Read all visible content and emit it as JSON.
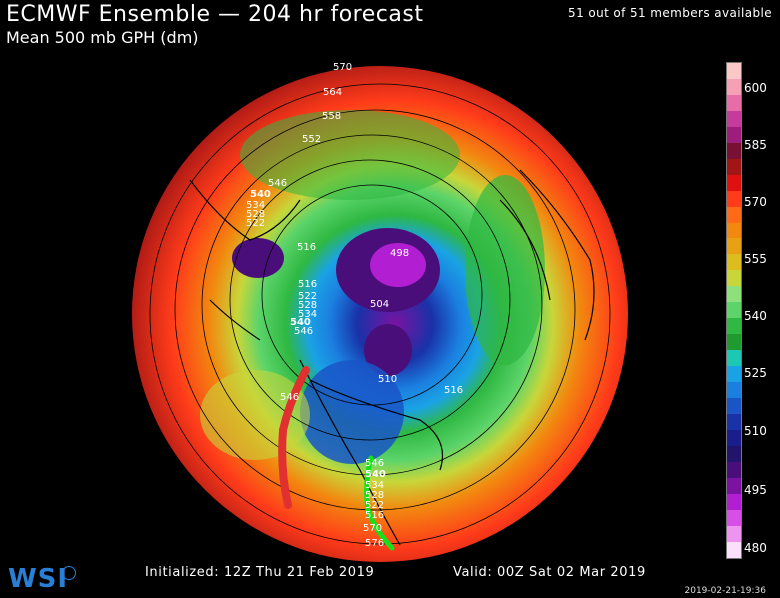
{
  "header": {
    "title": "ECMWF Ensemble — 204 hr forecast",
    "subtitle": "Mean 500 mb GPH (dm)",
    "members": "51 out of 51 members available"
  },
  "footer": {
    "initialized": "Initialized: 12Z Thu 21 Feb 2019",
    "valid": "Valid: 00Z Sat 02 Mar 2019",
    "timestamp": "2019-02-21-19:36",
    "logo": "WSI"
  },
  "colorbar": {
    "labels": [
      "600",
      "585",
      "570",
      "555",
      "540",
      "525",
      "510",
      "495",
      "480"
    ],
    "colors": [
      "#fbc8c8",
      "#f5a0b6",
      "#e86ca8",
      "#c63a9c",
      "#9e1c7c",
      "#7a0f34",
      "#a11515",
      "#e01010",
      "#ff3b1a",
      "#ff6a17",
      "#f2880f",
      "#e8a014",
      "#dcbc1e",
      "#c8d63a",
      "#8ee07a",
      "#5cd46a",
      "#2fb842",
      "#1e9a2f",
      "#1cc8b4",
      "#1aa3e4",
      "#1b7fe0",
      "#1a55c8",
      "#1932a8",
      "#1a1e8c",
      "#22146a",
      "#4a0e7a",
      "#7b12a2",
      "#b21ed2",
      "#d84fe8",
      "#ef93f0",
      "#fbe0fb"
    ]
  },
  "map": {
    "contour_labels": [
      "570",
      "564",
      "558",
      "552",
      "546",
      "540",
      "534",
      "528",
      "522",
      "516",
      "498",
      "504",
      "516",
      "522",
      "528",
      "534",
      "540",
      "546",
      "510",
      "516",
      "546",
      "546",
      "540",
      "534",
      "528",
      "522",
      "516",
      "570",
      "576"
    ],
    "colors": {
      "red_line": "#e03030",
      "green_line": "#18e018"
    }
  }
}
